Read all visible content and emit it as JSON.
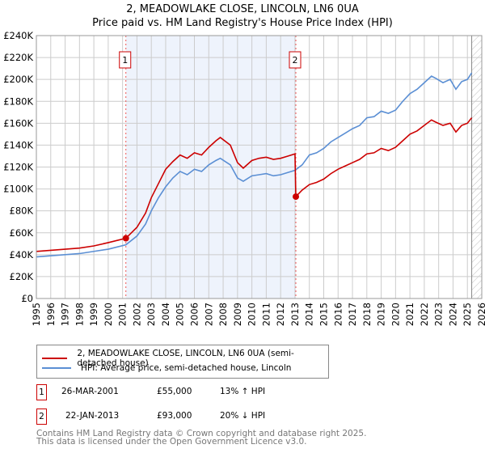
{
  "title": "2, MEADOWLAKE CLOSE, LINCOLN, LN6 0UA",
  "subtitle": "Price paid vs. HM Land Registry's House Price Index (HPI)",
  "colors": {
    "property": "#cc0000",
    "hpi": "#5b8fd4",
    "shade": "#eef3fc"
  },
  "chart_data": {
    "type": "line",
    "xlim": [
      1995,
      2026
    ],
    "ylim": [
      0,
      240000
    ],
    "x_ticks": [
      "1995",
      "1996",
      "1997",
      "1998",
      "1999",
      "2000",
      "2001",
      "2002",
      "2003",
      "2004",
      "2005",
      "2006",
      "2007",
      "2008",
      "2009",
      "2010",
      "2011",
      "2012",
      "2013",
      "2014",
      "2015",
      "2016",
      "2017",
      "2018",
      "2019",
      "2020",
      "2021",
      "2022",
      "2023",
      "2024",
      "2025",
      "2026"
    ],
    "y_ticks": [
      "£0",
      "£20K",
      "£40K",
      "£60K",
      "£80K",
      "£100K",
      "£120K",
      "£140K",
      "£160K",
      "£180K",
      "£200K",
      "£220K",
      "£240K"
    ],
    "series": [
      {
        "name": "2, MEADOWLAKE CLOSE, LINCOLN, LN6 0UA (semi-detached house)",
        "color": "#cc0000",
        "x": [
          1995,
          1996,
          1997,
          1998,
          1999,
          2000,
          2001.23,
          2002,
          2002.6,
          2003,
          2003.5,
          2004,
          2004.5,
          2005,
          2005.5,
          2006,
          2006.5,
          2007,
          2007.5,
          2007.8,
          2008.5,
          2009,
          2009.4,
          2010,
          2010.5,
          2011,
          2011.5,
          2012,
          2012.5,
          2013.0,
          2013.06,
          2013.5,
          2014,
          2014.5,
          2015,
          2015.5,
          2016,
          2016.5,
          2017,
          2017.5,
          2018,
          2018.5,
          2019,
          2019.5,
          2020,
          2020.5,
          2021,
          2021.5,
          2022,
          2022.5,
          2022.8,
          2023.3,
          2023.8,
          2024.2,
          2024.6,
          2025,
          2025.3
        ],
        "y": [
          43000,
          44000,
          45000,
          46000,
          48000,
          51000,
          55000,
          65000,
          78000,
          92000,
          105000,
          118000,
          125000,
          131000,
          128000,
          133000,
          131000,
          138000,
          144000,
          147000,
          140000,
          124000,
          119000,
          126000,
          128000,
          129000,
          127000,
          128000,
          130000,
          132000,
          93000,
          99000,
          104000,
          106000,
          109000,
          114000,
          118000,
          121000,
          124000,
          127000,
          132000,
          133000,
          137000,
          135000,
          138000,
          144000,
          150000,
          153000,
          158000,
          163000,
          161000,
          158000,
          160000,
          152000,
          158000,
          160000,
          165000
        ]
      },
      {
        "name": "HPI: Average price, semi-detached house, Lincoln",
        "color": "#5b8fd4",
        "x": [
          1995,
          1996,
          1997,
          1998,
          1999,
          2000,
          2001.23,
          2002,
          2002.6,
          2003,
          2003.5,
          2004,
          2004.5,
          2005,
          2005.5,
          2006,
          2006.5,
          2007,
          2007.5,
          2007.8,
          2008.5,
          2009,
          2009.4,
          2010,
          2010.5,
          2011,
          2011.5,
          2012,
          2012.5,
          2013.0,
          2013.5,
          2014,
          2014.5,
          2015,
          2015.5,
          2016,
          2016.5,
          2017,
          2017.5,
          2018,
          2018.5,
          2019,
          2019.5,
          2020,
          2020.5,
          2021,
          2021.5,
          2022,
          2022.5,
          2022.8,
          2023.3,
          2023.8,
          2024.2,
          2024.6,
          2025,
          2025.3
        ],
        "y": [
          38000,
          39000,
          40000,
          41000,
          43000,
          45000,
          49000,
          57000,
          68000,
          80000,
          92000,
          102000,
          110000,
          116000,
          113000,
          118000,
          116000,
          122000,
          126000,
          128000,
          122000,
          110000,
          107000,
          112000,
          113000,
          114000,
          112000,
          113000,
          115000,
          117000,
          122000,
          131000,
          133000,
          137000,
          143000,
          147000,
          151000,
          155000,
          158000,
          165000,
          166000,
          171000,
          169000,
          172000,
          180000,
          187000,
          191000,
          197000,
          203000,
          201000,
          197000,
          200000,
          191000,
          198000,
          200000,
          206000
        ]
      }
    ],
    "sales": [
      {
        "label": "1",
        "x": 2001.23,
        "y": 55000
      },
      {
        "label": "2",
        "x": 2013.06,
        "y": 93000
      }
    ],
    "shaded_between": [
      2001.23,
      2013.06
    ],
    "hatched_from": 2025.3
  },
  "legend": {
    "property": "2, MEADOWLAKE CLOSE, LINCOLN, LN6 0UA (semi-detached house)",
    "hpi": "HPI: Average price, semi-detached house, Lincoln"
  },
  "transactions": [
    {
      "num": "1",
      "date": "26-MAR-2001",
      "price": "£55,000",
      "hpi": "13% ↑ HPI"
    },
    {
      "num": "2",
      "date": "22-JAN-2013",
      "price": "£93,000",
      "hpi": "20% ↓ HPI"
    }
  ],
  "footer": [
    "Contains HM Land Registry data © Crown copyright and database right 2025.",
    "This data is licensed under the Open Government Licence v3.0."
  ]
}
